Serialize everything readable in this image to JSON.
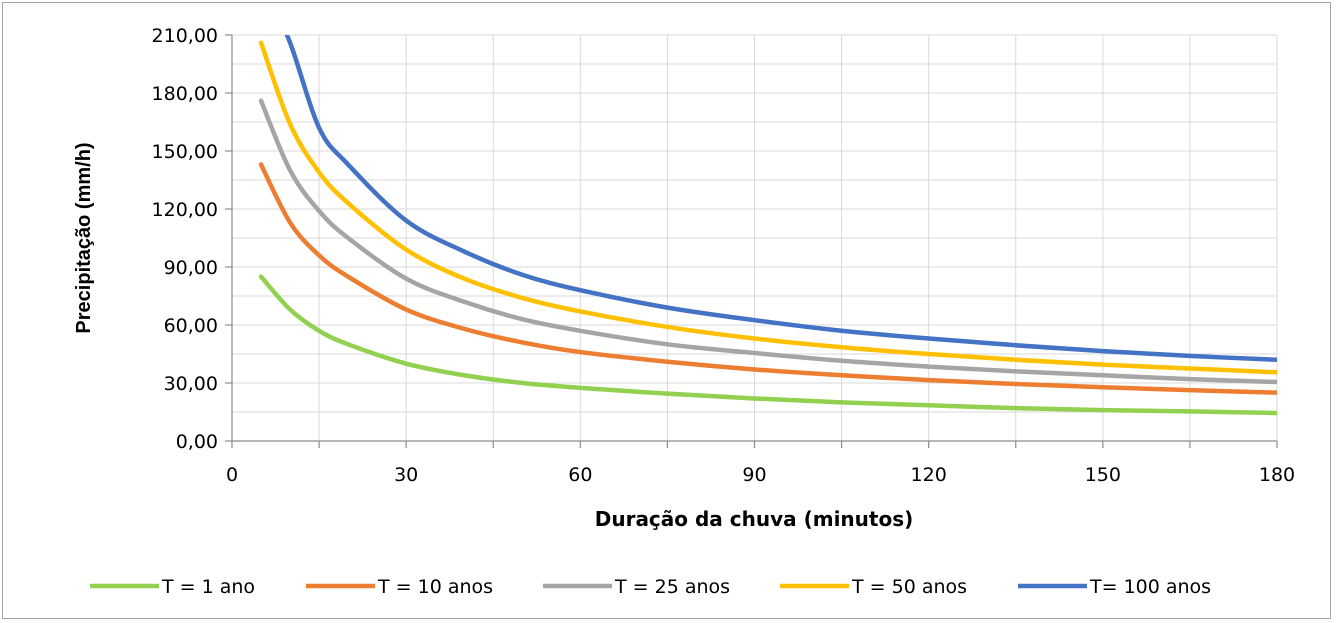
{
  "chart_data": {
    "type": "line",
    "title": "",
    "xlabel": "Duração da chuva (minutos)",
    "ylabel": "Precipitação (mm/h)",
    "xlim": [
      0,
      180
    ],
    "ylim": [
      0,
      210
    ],
    "xticks": [
      0,
      30,
      60,
      90,
      120,
      150,
      180
    ],
    "xtick_labels": [
      "0",
      "30",
      "60",
      "90",
      "120",
      "150",
      "180"
    ],
    "yticks": [
      0,
      30,
      60,
      90,
      120,
      150,
      180,
      210
    ],
    "ytick_labels": [
      "0,00",
      "30,00",
      "60,00",
      "90,00",
      "120,00",
      "150,00",
      "180,00",
      "210,00"
    ],
    "grid": true,
    "legend_position": "bottom",
    "x": [
      5,
      10,
      15,
      20,
      30,
      40,
      50,
      60,
      75,
      90,
      105,
      120,
      135,
      150,
      165,
      180
    ],
    "series": [
      {
        "name": "T = 1 ano",
        "color": "#92d050",
        "values": [
          85,
          68,
          57,
          50,
          40,
          34,
          30,
          27.5,
          24.5,
          22,
          20,
          18.5,
          17,
          16,
          15.3,
          14.5
        ]
      },
      {
        "name": "T = 10 anos",
        "color": "#ed7d31",
        "values": [
          143,
          113,
          96,
          85,
          68,
          58,
          51,
          46,
          41,
          37,
          34,
          31.5,
          29.5,
          27.8,
          26.3,
          25
        ]
      },
      {
        "name": "T = 25 anos",
        "color": "#a5a5a5",
        "values": [
          176,
          140,
          119,
          105,
          84,
          72,
          63,
          57,
          50,
          45.5,
          41.5,
          38.5,
          36,
          34,
          32,
          30.5
        ]
      },
      {
        "name": "T = 50 anos",
        "color": "#ffc000",
        "values": [
          206,
          164,
          139,
          123,
          99,
          84,
          74,
          67,
          59,
          53,
          48.5,
          45,
          42,
          39.5,
          37.5,
          35.5
        ]
      },
      {
        "name": "T= 100 anos",
        "color": "#4472c4",
        "values": [
          240,
          206,
          162,
          143,
          114,
          98,
          86,
          78,
          69,
          62.5,
          57,
          53,
          49.5,
          46.5,
          44,
          42
        ]
      }
    ]
  }
}
